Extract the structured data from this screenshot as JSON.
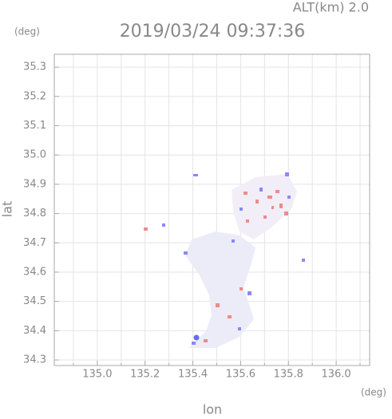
{
  "chart_data": {
    "type": "map",
    "title": "2019/03/24 09:37:36",
    "subtitle": "ALT(km) 2.0",
    "x_label": "lon",
    "y_label": "lat",
    "x_unit": "(deg)",
    "y_unit": "(deg)",
    "xlim": [
      134.82,
      136.14
    ],
    "ylim": [
      34.281,
      35.344
    ],
    "xticks": [
      {
        "value": 135,
        "label": "135.0"
      },
      135.2,
      135.4,
      135.6,
      135.8,
      {
        "value": 136,
        "label": "136.0"
      }
    ],
    "xticks_minor": [
      134.9,
      135.1,
      135.3,
      135.5,
      135.7,
      135.9,
      136.1
    ],
    "yticks": [
      34.3,
      34.4,
      34.5,
      34.6,
      34.7,
      34.8,
      34.9,
      {
        "value": 35,
        "label": "35.0"
      },
      35.1,
      35.2,
      35.3
    ],
    "grid": true
  }
}
